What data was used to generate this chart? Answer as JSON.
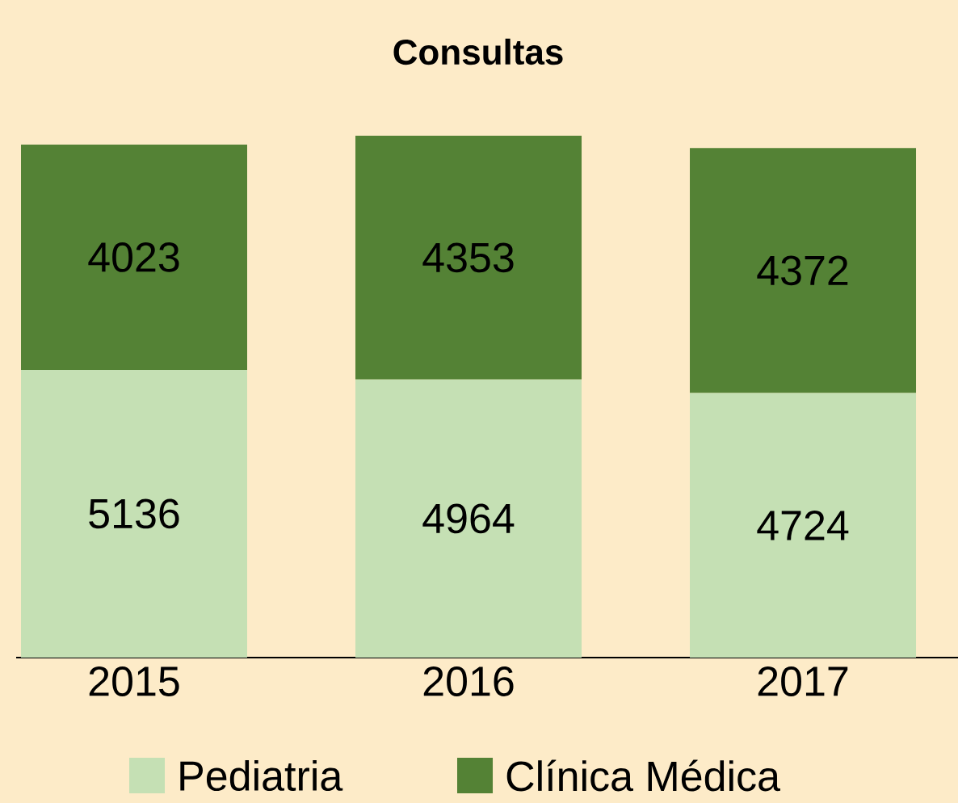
{
  "chart_data": {
    "type": "bar",
    "title": "Consultas",
    "stacked": true,
    "data_labels": true,
    "legend": "bottom",
    "categories": [
      "2015",
      "2016",
      "2017"
    ],
    "series": [
      {
        "name": "Pediatria",
        "color": "#c5e0b4",
        "values": [
          5136,
          4964,
          4724
        ]
      },
      {
        "name": "Clínica Médica",
        "color": "#548235",
        "values": [
          4023,
          4353,
          4372
        ]
      }
    ]
  }
}
